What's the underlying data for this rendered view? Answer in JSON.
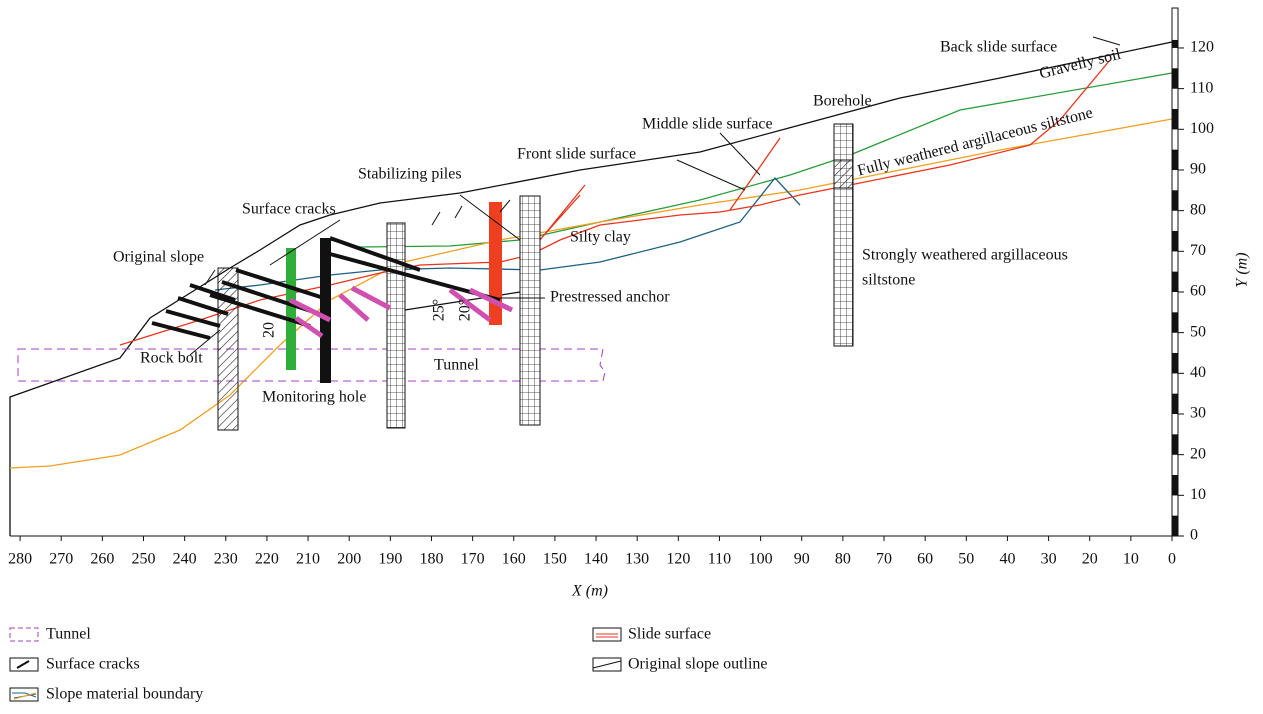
{
  "labels": {
    "back_slide": "Back slide surface",
    "gravelly": "Gravelly soil",
    "borehole": "Borehole",
    "middle_slide": "Middle slide surface",
    "fully_weathered": "Fully weathered argillaceous siltstone",
    "front_slide": "Front slide surface",
    "stabilizing": "Stabilizing piles",
    "surface_cracks": "Surface cracks",
    "silty_clay": "Silty clay",
    "original_slope": "Original slope",
    "strongly_1": "Strongly weathered argillaceous",
    "strongly_2": "siltstone",
    "prestressed": "Prestressed anchor",
    "rock_bolt": "Rock bolt",
    "tunnel": "Tunnel",
    "monitoring": "Monitoring hole",
    "angle_a": "20",
    "angle_b": "25°",
    "angle_c": "20°"
  },
  "axes": {
    "x": {
      "title": "X (m)",
      "ticks": [
        280,
        270,
        260,
        250,
        240,
        230,
        220,
        210,
        200,
        190,
        180,
        170,
        160,
        150,
        140,
        130,
        120,
        110,
        100,
        90,
        80,
        70,
        60,
        50,
        40,
        30,
        20,
        10,
        0
      ]
    },
    "y": {
      "title": "Y (m)",
      "ticks": [
        0,
        10,
        20,
        30,
        40,
        50,
        60,
        70,
        80,
        90,
        100,
        110,
        120
      ]
    }
  },
  "legend": [
    "Tunnel",
    "Surface cracks",
    "Slope material boundary",
    "Slide surface",
    "Original slope outline"
  ]
}
